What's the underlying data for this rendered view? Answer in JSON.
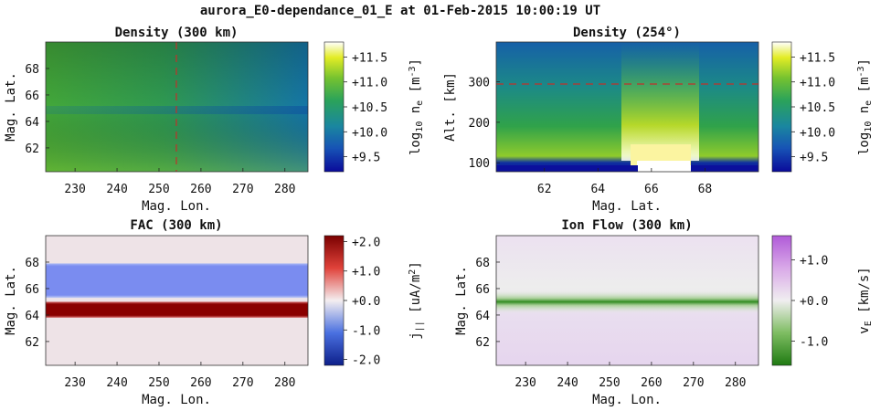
{
  "figure": {
    "suptitle": "aurora_E0-dependance_01_E at 01-Feb-2015 10:00:19 UT"
  },
  "chart_data": [
    {
      "type": "heatmap",
      "title": "Density (300 km)",
      "xlabel": "Mag. Lon.",
      "ylabel": "Mag. Lat.",
      "xlim": [
        223,
        285.5
      ],
      "ylim": [
        60.2,
        70.0
      ],
      "xticks": [
        230,
        240,
        250,
        260,
        270,
        280
      ],
      "yticks": [
        62,
        64,
        66,
        68
      ],
      "colormap": "viridis-like (blue-green-yellow)",
      "colorbar": {
        "label": "log10 n_e [m^-3]",
        "range": [
          9.2,
          11.8
        ],
        "ticks": [
          9.5,
          10.0,
          10.5,
          11.0,
          11.5
        ],
        "ticklabels": [
          "+9.5",
          "+10.0",
          "+10.5",
          "+11.0",
          "+11.5"
        ]
      },
      "reference_line": {
        "axis": "x",
        "value": 254,
        "style": "red dashed"
      },
      "features": "green in south-west, blue toward north-east, dark band near 65 lat"
    },
    {
      "type": "heatmap",
      "title": "Density (254°)",
      "xlabel": "Mag. Lat.",
      "ylabel": "Alt. [km]",
      "xlim": [
        60.2,
        70.0
      ],
      "ylim": [
        78,
        398
      ],
      "xticks": [
        62,
        64,
        66,
        68
      ],
      "yticks": [
        100,
        200,
        300
      ],
      "colormap": "viridis-like (blue-green-yellow)",
      "colorbar": {
        "label": "log10 n_e [m^-3]",
        "range": [
          9.2,
          11.8
        ],
        "ticks": [
          9.5,
          10.0,
          10.5,
          11.0,
          11.5
        ],
        "ticklabels": [
          "+9.5",
          "+10.0",
          "+10.5",
          "+11.0",
          "+11.5"
        ]
      },
      "reference_line": {
        "axis": "y",
        "value": 300,
        "style": "red dashed"
      },
      "features": "aurora enhancement between 65.2 and 67.7 lat peaking near 90-100 km"
    },
    {
      "type": "heatmap",
      "title": "FAC (300 km)",
      "xlabel": "Mag. Lon.",
      "ylabel": "Mag. Lat.",
      "xlim": [
        223,
        285.5
      ],
      "ylim": [
        60.2,
        70.0
      ],
      "xticks": [
        230,
        240,
        250,
        260,
        270,
        280
      ],
      "yticks": [
        62,
        64,
        66,
        68
      ],
      "colormap": "diverging blue-white-red",
      "colorbar": {
        "label": "j|| [uA/m^2]",
        "range": [
          -2.2,
          2.2
        ],
        "ticks": [
          -2.0,
          -1.0,
          0.0,
          1.0,
          2.0
        ],
        "ticklabels": [
          "-2.0",
          "-1.0",
          "+0.0",
          "+1.0",
          "+2.0"
        ]
      },
      "bands": [
        {
          "lat_min": 65.3,
          "lat_max": 67.9,
          "value": -1.0
        },
        {
          "lat_min": 63.8,
          "lat_max": 65.0,
          "value": 2.0
        }
      ]
    },
    {
      "type": "heatmap",
      "title": "Ion Flow (300 km)",
      "xlabel": "Mag. Lon.",
      "ylabel": "Mag. Lat.",
      "xlim": [
        223,
        285.5
      ],
      "ylim": [
        60.2,
        70.0
      ],
      "xticks": [
        230,
        240,
        250,
        260,
        270,
        280
      ],
      "yticks": [
        62,
        64,
        66,
        68
      ],
      "colormap": "diverging green-white-purple",
      "colorbar": {
        "label": "v_E [km/s]",
        "range": [
          -1.6,
          1.6
        ],
        "ticks": [
          -1.0,
          0.0,
          1.0
        ],
        "ticklabels": [
          "-1.0",
          "+0.0",
          "+1.0"
        ]
      },
      "bands": [
        {
          "lat_center": 65.0,
          "value": -1.3
        }
      ]
    }
  ]
}
